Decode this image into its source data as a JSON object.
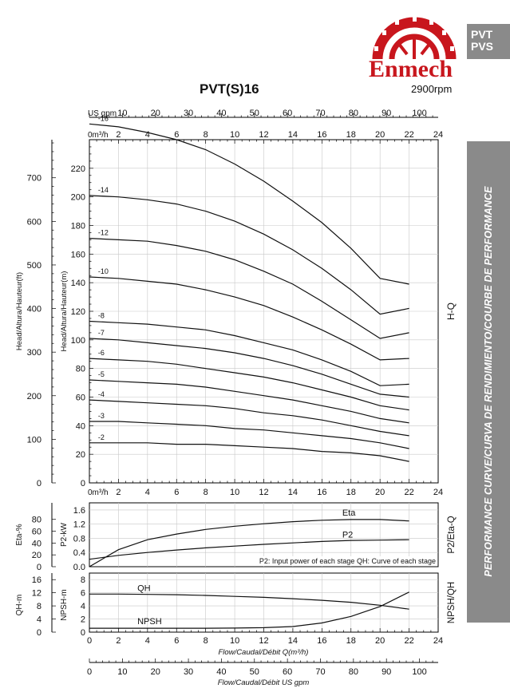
{
  "brand": {
    "name": "Enmech",
    "tag_line1": "PVT",
    "tag_line2": "PVS",
    "accent": "#c8161d"
  },
  "header": {
    "title": "PVT(S)16",
    "speed": "2900rpm"
  },
  "sidebar": {
    "text": "PERFORMANCE CURVE/CURVA DE RENDIMIENTO/COURBE DE PERFORMANCE"
  },
  "chart_data": [
    {
      "type": "line",
      "panel": "H-Q",
      "section_label": "H-Q",
      "xlabel_top": "US gpm",
      "x_unit_top": "0m³/h",
      "x_unit_bottom": "0m³/h",
      "ylabel_left": "Head/Altura/Hauteur(ft)",
      "ylabel_right": "Head/Altura/Hauteur(m)",
      "xlim": [
        0,
        24
      ],
      "ylim_m": [
        0,
        240
      ],
      "ft_ticks": [
        "0",
        "100",
        "200",
        "300",
        "400",
        "500",
        "600",
        "700"
      ],
      "m_ticks": [
        "0",
        "20",
        "40",
        "60",
        "80",
        "100",
        "120",
        "140",
        "160",
        "180",
        "200",
        "220"
      ],
      "gpm_ticks": [
        "10",
        "20",
        "30",
        "40",
        "50",
        "60",
        "70",
        "80",
        "90",
        "100"
      ],
      "q_ticks": [
        "2",
        "4",
        "6",
        "8",
        "10",
        "12",
        "14",
        "16",
        "18",
        "20",
        "22",
        "24"
      ],
      "x": [
        0,
        2,
        4,
        6,
        8,
        10,
        12,
        14,
        16,
        18,
        20,
        22
      ],
      "series": [
        {
          "name": "-16",
          "values": [
            251,
            249,
            245,
            240,
            233,
            223,
            211,
            197,
            182,
            164,
            143,
            139
          ]
        },
        {
          "name": "-14",
          "values": [
            201,
            200,
            198,
            195,
            190,
            183,
            174,
            163,
            150,
            135,
            118,
            122
          ]
        },
        {
          "name": "-12",
          "values": [
            171,
            170,
            169,
            166,
            162,
            156,
            148,
            139,
            127,
            114,
            101,
            105
          ]
        },
        {
          "name": "-10",
          "values": [
            144,
            143,
            141,
            139,
            135,
            130,
            124,
            116,
            107,
            97,
            86,
            87
          ]
        },
        {
          "name": "-8",
          "values": [
            113,
            112,
            111,
            109,
            107,
            103,
            98,
            93,
            86,
            78,
            68,
            69
          ]
        },
        {
          "name": "-7",
          "values": [
            101,
            100,
            98,
            96,
            94,
            91,
            87,
            82,
            76,
            69,
            62,
            60
          ]
        },
        {
          "name": "-6",
          "values": [
            87,
            86,
            85,
            83,
            80,
            77,
            74,
            70,
            65,
            60,
            54,
            51
          ]
        },
        {
          "name": "-5",
          "values": [
            72,
            71,
            70,
            69,
            67,
            64,
            61,
            58,
            54,
            50,
            45,
            42
          ]
        },
        {
          "name": "-4",
          "values": [
            58,
            57,
            56,
            55,
            54,
            52,
            49,
            47,
            44,
            40,
            36,
            33
          ]
        },
        {
          "name": "-3",
          "values": [
            43,
            43,
            42,
            41,
            40,
            38,
            37,
            35,
            33,
            31,
            28,
            24
          ]
        },
        {
          "name": "-2",
          "values": [
            28,
            28,
            28,
            27,
            27,
            26,
            25,
            24,
            22,
            21,
            19,
            15
          ]
        }
      ]
    },
    {
      "type": "line",
      "panel": "P2/Eta-Q",
      "section_label": "P2/Eta-Q",
      "ylabel_left": "Eta-%",
      "ylabel_right": "P2-kW",
      "xlim": [
        0,
        24
      ],
      "ylim_kw": [
        0,
        1.8
      ],
      "eta_ticks": [
        "0",
        "20",
        "40",
        "60",
        "80"
      ],
      "kw_ticks": [
        "0.0",
        "0.4",
        "0.8",
        "1.2",
        "1.6"
      ],
      "note": "P2: Input power of each stage QH: Curve of each stage",
      "x": [
        0,
        2,
        4,
        6,
        8,
        10,
        12,
        14,
        16,
        18,
        20,
        22
      ],
      "series": [
        {
          "name": "Eta",
          "values": [
            0.0,
            0.48,
            0.76,
            0.92,
            1.05,
            1.14,
            1.21,
            1.27,
            1.31,
            1.33,
            1.33,
            1.29
          ]
        },
        {
          "name": "P2",
          "values": [
            0.21,
            0.32,
            0.4,
            0.47,
            0.53,
            0.58,
            0.63,
            0.67,
            0.71,
            0.74,
            0.75,
            0.76
          ]
        }
      ]
    },
    {
      "type": "line",
      "panel": "NPSH/QH",
      "section_label": "NPSH/QH",
      "ylabel_left": "QH-m",
      "ylabel_right": "NPSH-m",
      "xlabel": "Flow/Caudal/Débit Q(m³/h)",
      "xlabel_bottom": "Flow/Caudal/Débit  US gpm",
      "xlim": [
        0,
        24
      ],
      "ylim_npsh": [
        0,
        9
      ],
      "qh_ticks": [
        "0",
        "4",
        "8",
        "12",
        "16"
      ],
      "npsh_ticks": [
        "0",
        "2",
        "4",
        "6",
        "8"
      ],
      "q_ticks": [
        "0",
        "2",
        "4",
        "6",
        "8",
        "10",
        "12",
        "14",
        "16",
        "18",
        "20",
        "22",
        "24"
      ],
      "gpm_ticks": [
        "0",
        "10",
        "20",
        "30",
        "40",
        "50",
        "60",
        "70",
        "80",
        "90",
        "100"
      ],
      "x": [
        0,
        2,
        4,
        6,
        8,
        10,
        12,
        14,
        16,
        18,
        20,
        22
      ],
      "series": [
        {
          "name": "QH",
          "values": [
            5.8,
            5.8,
            5.75,
            5.7,
            5.6,
            5.45,
            5.3,
            5.1,
            4.85,
            4.55,
            4.1,
            3.5
          ]
        },
        {
          "name": "NPSH",
          "values": [
            0.6,
            0.6,
            0.6,
            0.6,
            0.6,
            0.62,
            0.68,
            0.85,
            1.4,
            2.4,
            3.9,
            6.1
          ]
        }
      ]
    }
  ]
}
